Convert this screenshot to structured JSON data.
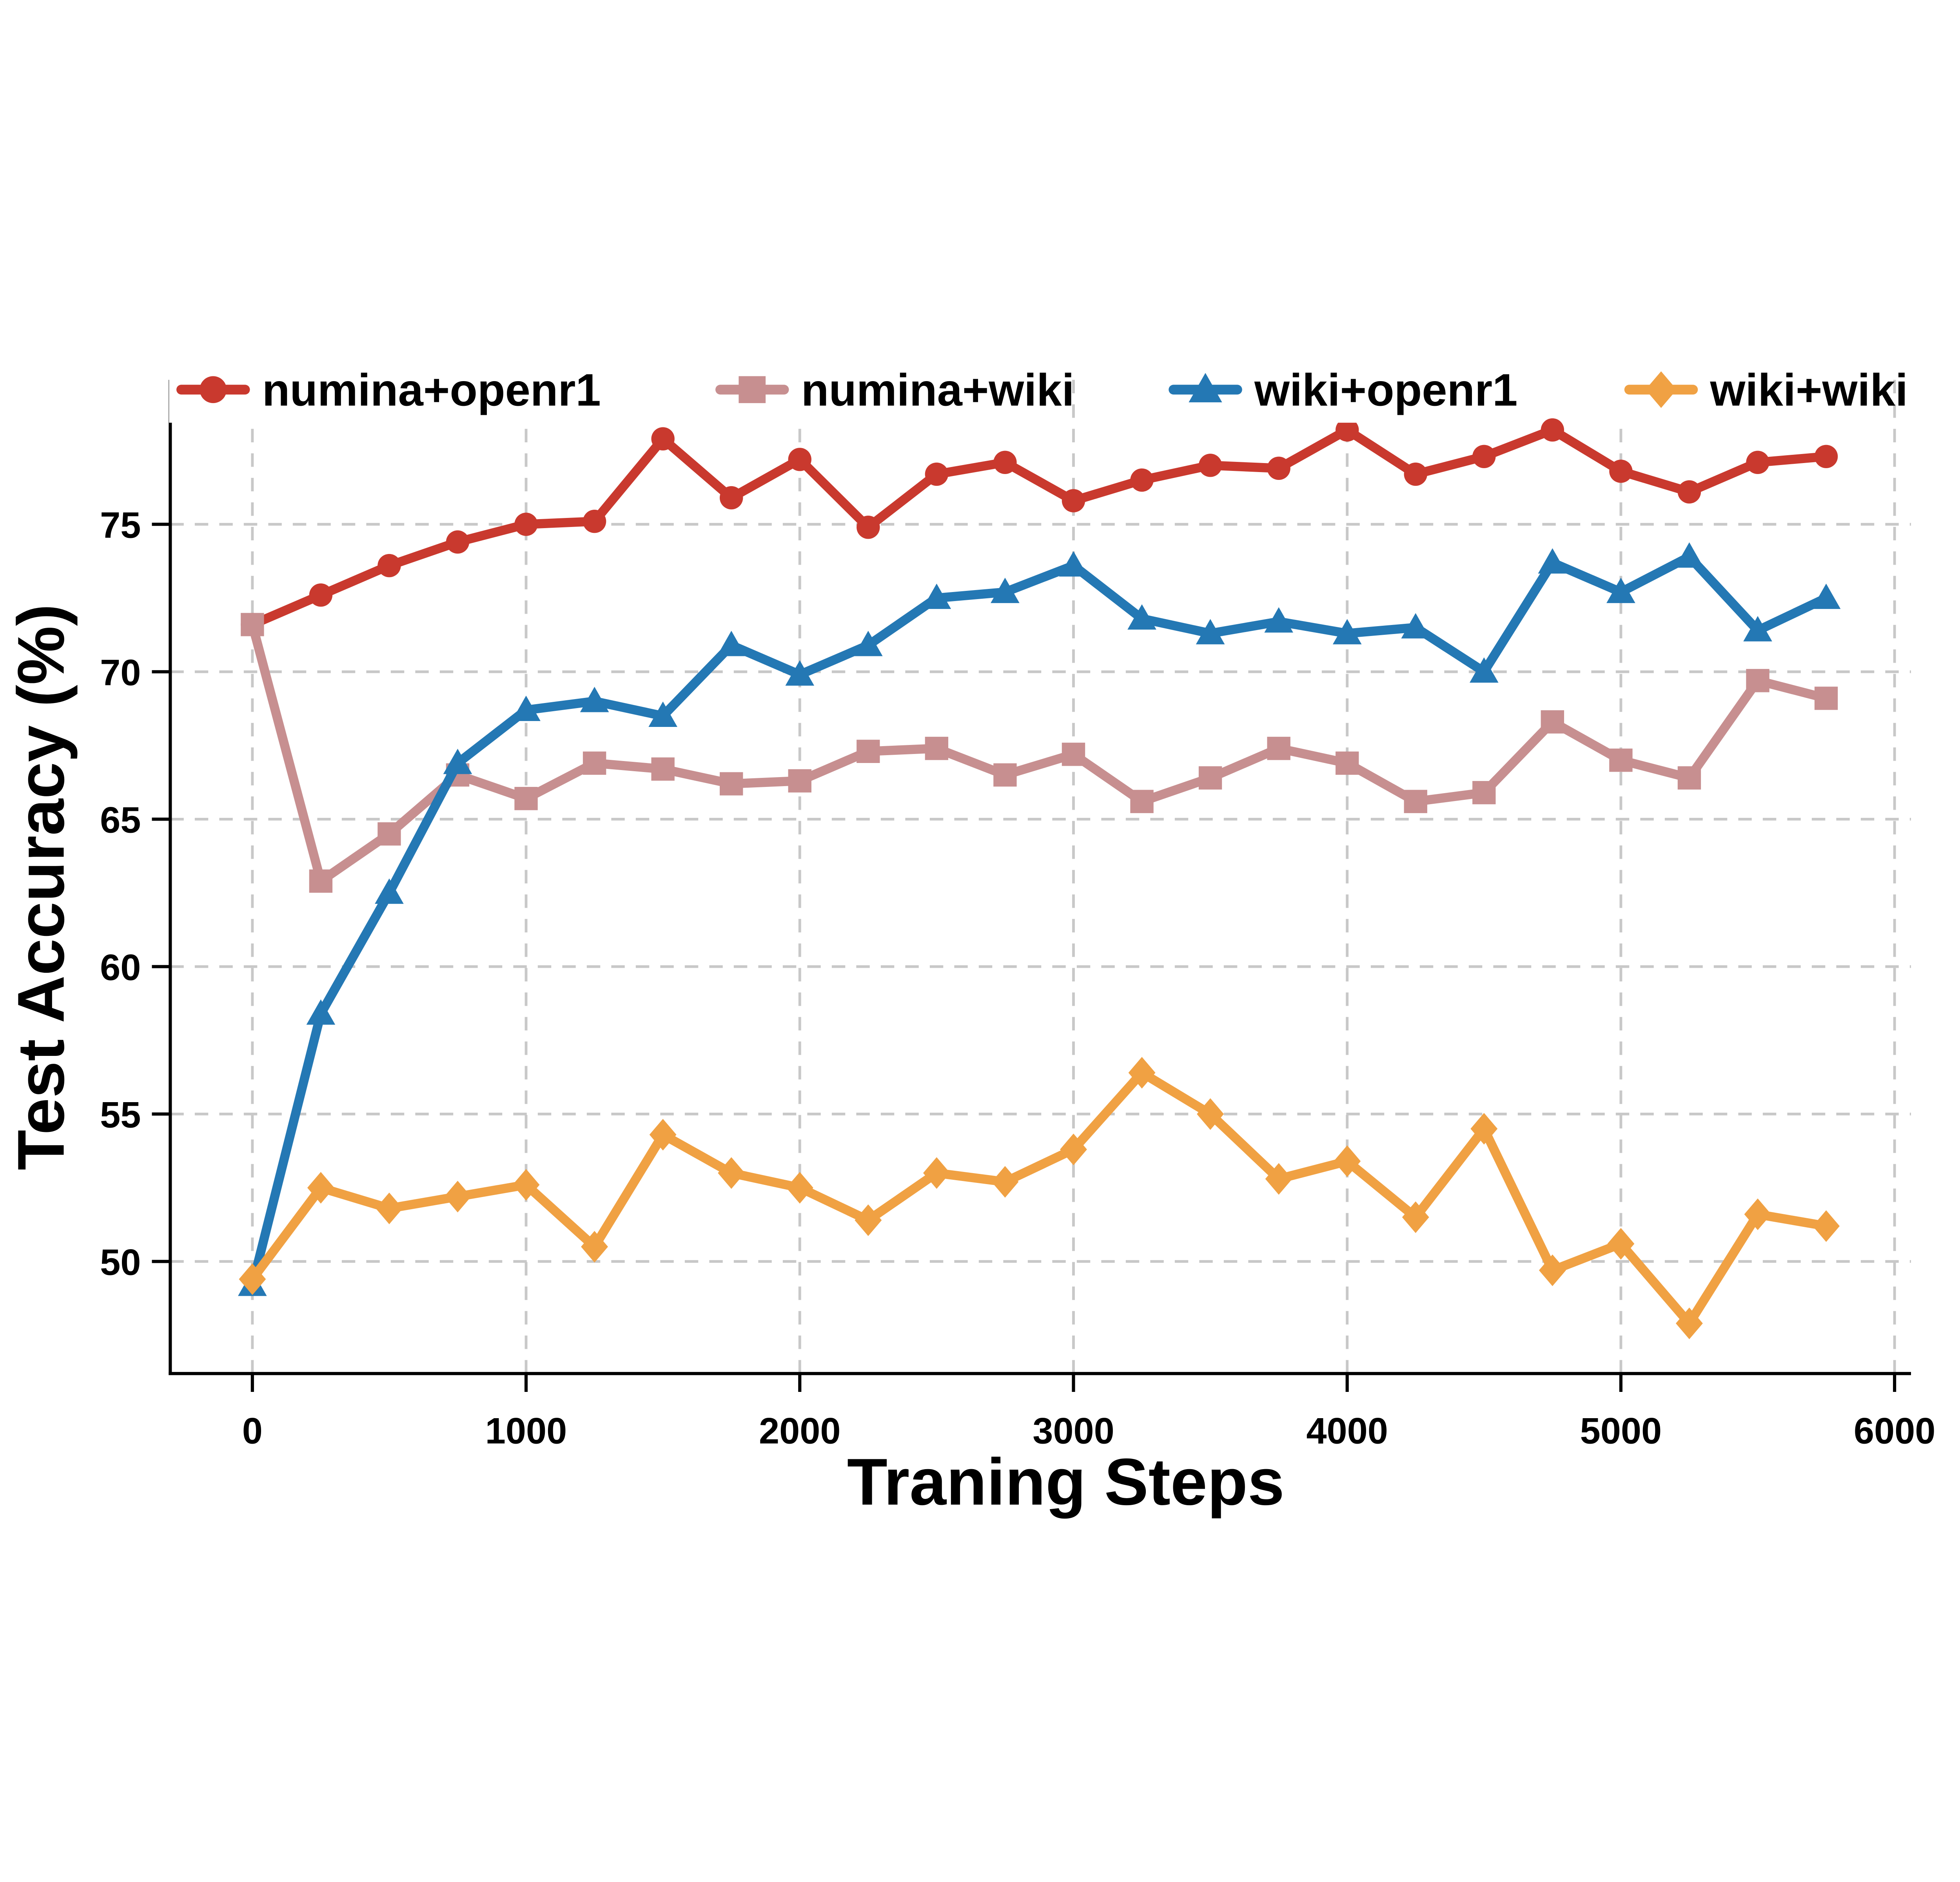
{
  "figure": {
    "background": "#ffffff"
  },
  "legend": {
    "items": [
      {
        "label": "numina+openr1",
        "color": "#c9392e",
        "marker": "circle"
      },
      {
        "label": "numina+wiki",
        "color": "#c78f90",
        "marker": "square"
      },
      {
        "label": "wiki+openr1",
        "color": "#2478b4",
        "marker": "triangle"
      },
      {
        "label": "wiki+wiki",
        "color": "#f0a143",
        "marker": "diamond"
      }
    ]
  },
  "style": {
    "grid_color": "#c8c8c8",
    "spine_color": "#000000",
    "line_width": 7.5,
    "marker_size": 19
  },
  "chart_data": {
    "type": "line",
    "title": "",
    "xlabel": "Traning Steps",
    "ylabel": "Test Accuracy (%)",
    "x_ticks": [
      0,
      1000,
      2000,
      3000,
      4000,
      5000,
      6000
    ],
    "y_ticks": [
      50,
      55,
      60,
      65,
      70,
      75
    ],
    "xlim": [
      -300,
      6060
    ],
    "ylim": [
      46.2,
      79.9
    ],
    "grid": "dashed",
    "legend_position": "top",
    "x": [
      0,
      250,
      500,
      750,
      1000,
      1250,
      1500,
      1750,
      2000,
      2250,
      2500,
      2750,
      3000,
      3250,
      3500,
      3750,
      4000,
      4250,
      4500,
      4750,
      5000,
      5250,
      5500,
      5750
    ],
    "series": [
      {
        "name": "numina+openr1",
        "color": "#c9392e",
        "marker": "circle",
        "values": [
          71.6,
          72.6,
          73.6,
          74.4,
          75.0,
          75.1,
          77.9,
          75.9,
          77.2,
          74.9,
          76.7,
          77.1,
          75.8,
          76.5,
          77.0,
          76.9,
          78.2,
          76.7,
          77.3,
          78.2,
          76.8,
          76.1,
          77.1,
          77.3
        ]
      },
      {
        "name": "numina+wiki",
        "color": "#c78f90",
        "marker": "square",
        "values": [
          71.6,
          62.9,
          64.5,
          66.5,
          65.7,
          66.9,
          66.7,
          66.2,
          66.3,
          67.3,
          67.4,
          66.5,
          67.2,
          65.6,
          66.4,
          67.4,
          66.9,
          65.6,
          65.9,
          68.3,
          67.0,
          66.4,
          69.7,
          69.1
        ]
      },
      {
        "name": "wiki+openr1",
        "color": "#2478b4",
        "marker": "triangle",
        "values": [
          49.2,
          58.4,
          62.5,
          66.9,
          68.7,
          69.0,
          68.5,
          70.9,
          69.9,
          70.9,
          72.5,
          72.7,
          73.6,
          71.8,
          71.3,
          71.7,
          71.3,
          71.5,
          70.0,
          73.7,
          72.7,
          73.9,
          71.4,
          72.5
        ]
      },
      {
        "name": "wiki+wiki",
        "color": "#f0a143",
        "marker": "diamond",
        "values": [
          49.4,
          52.5,
          51.8,
          52.2,
          52.6,
          50.5,
          54.3,
          53.0,
          52.5,
          51.4,
          53.0,
          52.7,
          53.8,
          56.4,
          55.0,
          52.8,
          53.4,
          51.5,
          54.5,
          49.7,
          50.6,
          47.9,
          51.6,
          51.2
        ]
      }
    ]
  }
}
